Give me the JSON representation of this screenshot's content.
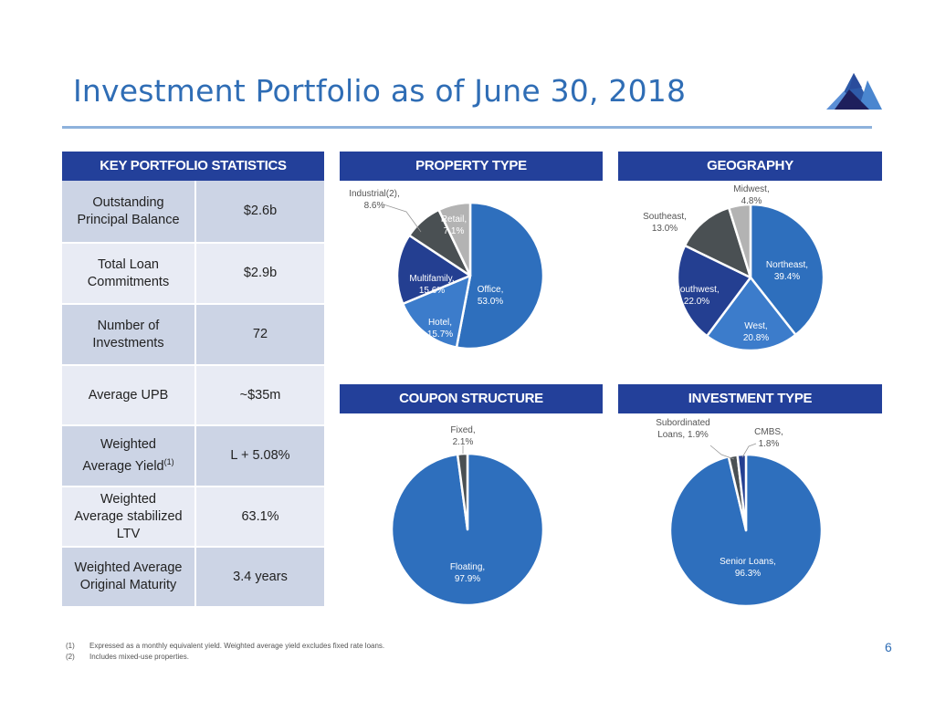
{
  "title": "Investment Portfolio as of June 30, 2018",
  "logo": "mountain-logo",
  "stats": {
    "header": "KEY PORTFOLIO STATISTICS",
    "rows": [
      {
        "label": [
          "Outstanding",
          "Principal Balance"
        ],
        "value": "$2.6b",
        "shade": "dark",
        "height": 0
      },
      {
        "label": [
          "Total Loan",
          "Commitments"
        ],
        "value": "$2.9b",
        "shade": "light"
      },
      {
        "label": [
          "Number of",
          "Investments"
        ],
        "value": "72",
        "shade": "dark"
      },
      {
        "label": [
          "Average UPB"
        ],
        "value": "~$35m",
        "shade": "light"
      },
      {
        "label": [
          "Weighted",
          "Average Yield"
        ],
        "sup": "(1)",
        "value": "L + 5.08%",
        "shade": "dark"
      },
      {
        "label": [
          "Weighted",
          "Average stabilized",
          "LTV"
        ],
        "value": "63.1%",
        "shade": "light"
      },
      {
        "label": [
          "Weighted Average",
          "Original Maturity"
        ],
        "value": "3.4 years",
        "shade": "dark"
      }
    ]
  },
  "colors": {
    "header_bg": "#23409a",
    "title": "#2f6db5",
    "blue_main": "#2e6fbd",
    "blue_light": "#3c7ccb",
    "navy": "#243f91",
    "slate": "#4a5053",
    "gray": "#b3b3b3"
  },
  "chart_data": [
    {
      "type": "pie",
      "title": "PROPERTY TYPE",
      "slices": [
        {
          "name": "Office",
          "value": 53.0,
          "label": [
            "Office,",
            "53.0%"
          ],
          "color": "#2e6fbd"
        },
        {
          "name": "Hotel",
          "value": 15.7,
          "label": [
            "Hotel,",
            "15.7%"
          ],
          "color": "#3c7ccb"
        },
        {
          "name": "Multifamily",
          "value": 15.6,
          "label": [
            "Multifamily,",
            "15.6%"
          ],
          "color": "#243f91"
        },
        {
          "name": "Industrial",
          "value": 8.6,
          "label": [
            "Industrial(2),",
            "8.6%"
          ],
          "color": "#4a5053"
        },
        {
          "name": "Retail",
          "value": 7.1,
          "label": [
            "Retail,",
            "7.1%"
          ],
          "color": "#b3b3b3"
        }
      ]
    },
    {
      "type": "pie",
      "title": "GEOGRAPHY",
      "slices": [
        {
          "name": "Northeast",
          "value": 39.4,
          "label": [
            "Northeast,",
            "39.4%"
          ],
          "color": "#2e6fbd"
        },
        {
          "name": "West",
          "value": 20.8,
          "label": [
            "West,",
            "20.8%"
          ],
          "color": "#3c7ccb"
        },
        {
          "name": "Southwest",
          "value": 22.0,
          "label": [
            "Southwest,",
            "22.0%"
          ],
          "color": "#243f91"
        },
        {
          "name": "Southeast",
          "value": 13.0,
          "label": [
            "Southeast,",
            "13.0%"
          ],
          "color": "#4a5053"
        },
        {
          "name": "Midwest",
          "value": 4.8,
          "label": [
            "Midwest,",
            "4.8%"
          ],
          "color": "#b3b3b3"
        }
      ]
    },
    {
      "type": "pie",
      "title": "COUPON STRUCTURE",
      "slices": [
        {
          "name": "Floating",
          "value": 97.9,
          "label": [
            "Floating,",
            "97.9%"
          ],
          "color": "#2e6fbd"
        },
        {
          "name": "Fixed",
          "value": 2.1,
          "label": [
            "Fixed,",
            "2.1%"
          ],
          "color": "#4a5053"
        }
      ]
    },
    {
      "type": "pie",
      "title": "INVESTMENT TYPE",
      "slices": [
        {
          "name": "Senior Loans",
          "value": 96.3,
          "label": [
            "Senior Loans,",
            "96.3%"
          ],
          "color": "#2e6fbd"
        },
        {
          "name": "Subordinated Loans",
          "value": 1.9,
          "label": [
            "Subordinated",
            "Loans, 1.9%"
          ],
          "color": "#4a5053"
        },
        {
          "name": "CMBS",
          "value": 1.8,
          "label": [
            "CMBS,",
            "1.8%"
          ],
          "color": "#243f91"
        }
      ]
    }
  ],
  "footnotes": [
    {
      "num": "(1)",
      "text": "Expressed as a monthly equivalent yield. Weighted average yield excludes fixed rate loans."
    },
    {
      "num": "(2)",
      "text": "Includes mixed-use properties."
    }
  ],
  "page_number": "6"
}
